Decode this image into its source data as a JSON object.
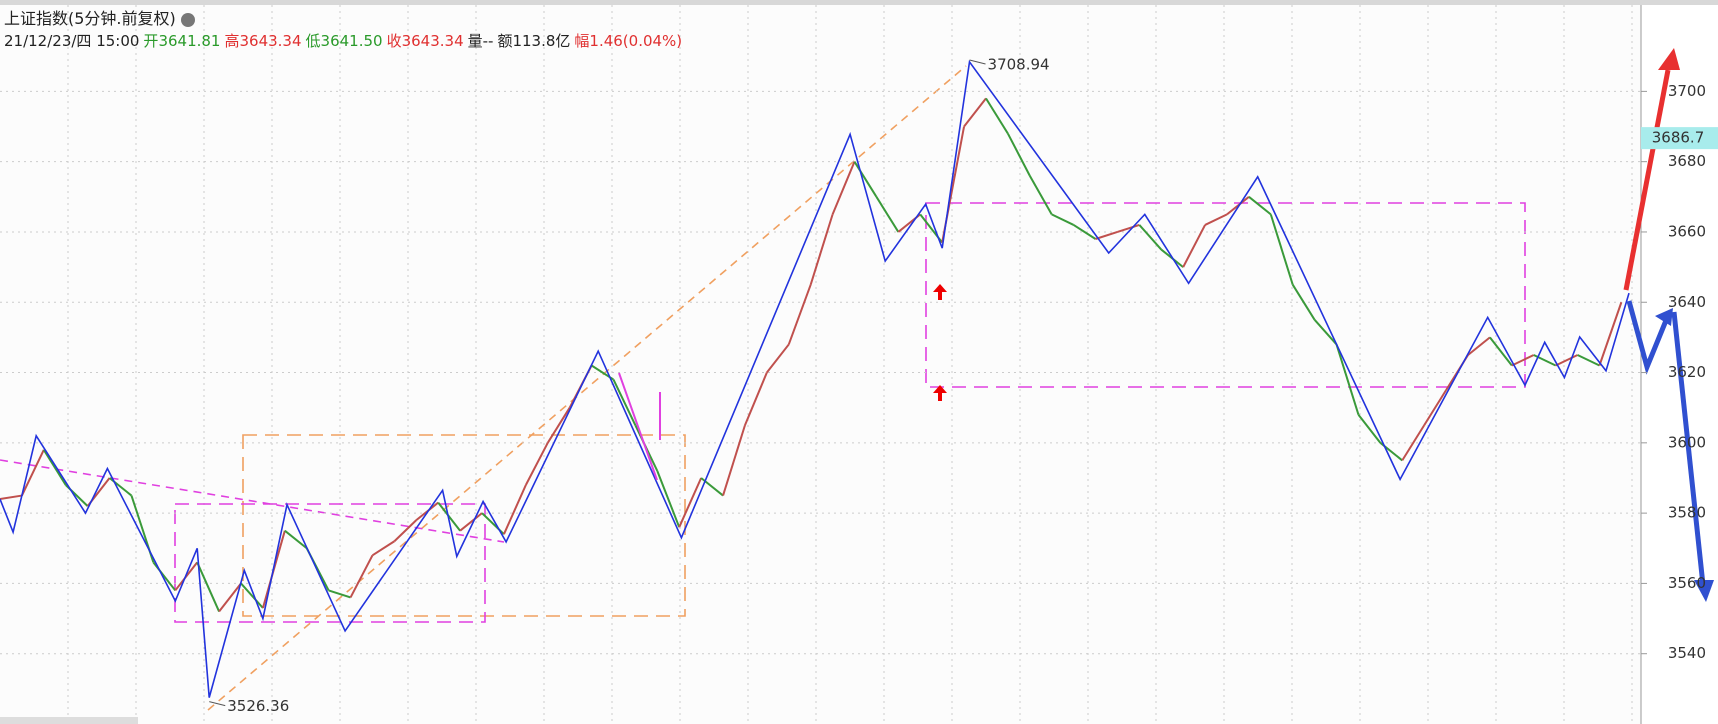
{
  "header": {
    "title": "上证指数(5分钟.前复权)",
    "date": "21/12/23/四 15:00",
    "open_label": "开",
    "open": "3641.81",
    "high_label": "高",
    "high": "3643.34",
    "low_label": "低",
    "low": "3641.50",
    "close_label": "收",
    "close": "3643.34",
    "volume": "量--",
    "amount": "额113.8亿",
    "change_label": "幅",
    "change": "1.46(0.04%)"
  },
  "chart_data": {
    "type": "line",
    "xlim": [
      0,
      1497
    ],
    "ylim": [
      3520,
      3726
    ],
    "yticks": [
      3540,
      3560,
      3580,
      3600,
      3620,
      3640,
      3660,
      3680,
      3700
    ],
    "grid": true,
    "current_price": 3686.7,
    "annotations": [
      {
        "x": 885,
        "value": 3708.94
      },
      {
        "x": 191,
        "value": 3526.36
      }
    ],
    "series": [
      {
        "name": "zigzag",
        "color": "#2233dd",
        "x": [
          0,
          12,
          33,
          78,
          98,
          160,
          180,
          191,
          223,
          240,
          262,
          315,
          404,
          417,
          441,
          462,
          546,
          622,
          776,
          808,
          845,
          860,
          885,
          1012,
          1045,
          1085,
          1148,
          1278,
          1358,
          1392,
          1410,
          1428,
          1442,
          1466,
          1487
        ],
        "values": [
          3584,
          3574.6,
          3602,
          3580,
          3592.7,
          3555,
          3570,
          3527.5,
          3563.7,
          3550,
          3582.4,
          3546.5,
          3586.5,
          3567.7,
          3583.3,
          3571.8,
          3626.1,
          3573,
          3687.8,
          3651.7,
          3667.9,
          3655.4,
          3708.4,
          3654,
          3665,
          3645.4,
          3675.7,
          3589.6,
          3635.7,
          3616.4,
          3628.6,
          3618.6,
          3630.1,
          3620.5,
          3642.6
        ]
      },
      {
        "name": "price",
        "color": "#c0504d",
        "x": [
          0,
          20,
          40,
          60,
          80,
          100,
          120,
          140,
          160,
          180,
          200,
          220,
          240,
          260,
          280,
          300,
          320,
          340,
          360,
          380,
          400,
          420,
          440,
          460,
          480,
          500,
          520,
          540,
          560,
          580,
          600,
          620,
          640,
          660,
          680,
          700,
          720,
          740,
          760,
          780,
          800,
          820,
          840,
          860,
          880,
          900,
          920,
          940,
          960,
          980,
          1000,
          1020,
          1040,
          1060,
          1080,
          1100,
          1120,
          1140,
          1160,
          1180,
          1200,
          1220,
          1240,
          1260,
          1280,
          1300,
          1320,
          1340,
          1360,
          1380,
          1400,
          1420,
          1440,
          1460,
          1480
        ],
        "values": [
          3584,
          3585,
          3598,
          3588,
          3582,
          3590,
          3585,
          3566,
          3558,
          3566,
          3552,
          3560,
          3553,
          3575,
          3570,
          3558,
          3556,
          3568,
          3572,
          3578,
          3583,
          3575,
          3580,
          3574,
          3588,
          3600,
          3610,
          3622,
          3618,
          3605,
          3592,
          3576,
          3590,
          3585,
          3605,
          3620,
          3628,
          3645,
          3665,
          3680,
          3670,
          3660,
          3665,
          3657,
          3690,
          3698,
          3688,
          3676,
          3665,
          3662,
          3658,
          3660,
          3662,
          3655,
          3650,
          3662,
          3665,
          3670,
          3665,
          3645,
          3635,
          3628,
          3608,
          3600,
          3595,
          3605,
          3615,
          3625,
          3630,
          3622,
          3625,
          3622,
          3625,
          3622,
          3640
        ]
      }
    ]
  }
}
